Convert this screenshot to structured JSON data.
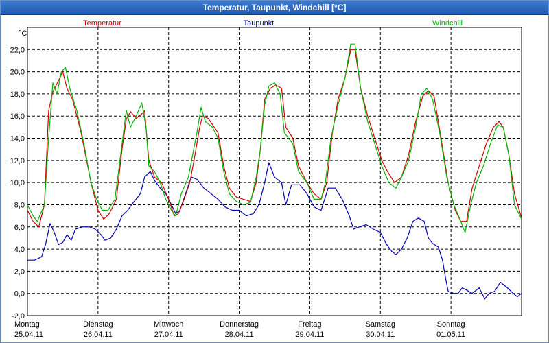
{
  "window": {
    "title": "Temperatur, Taupunkt, Windchill [°C]"
  },
  "chart_data": {
    "type": "line",
    "ylabel": "°C",
    "ylim": [
      -2,
      24
    ],
    "yticks": [
      "22,0",
      "20,0",
      "18,0",
      "16,0",
      "14,0",
      "12,0",
      "10,0",
      "8,0",
      "6,0",
      "4,0",
      "2,0",
      "0,0",
      "-2,0"
    ],
    "ytick_values": [
      22,
      20,
      18,
      16,
      14,
      12,
      10,
      8,
      6,
      4,
      2,
      0,
      -2
    ],
    "xlim": [
      0,
      7
    ],
    "x_days": [
      {
        "day": "Montag",
        "date": "25.04.11"
      },
      {
        "day": "Dienstag",
        "date": "26.04.11"
      },
      {
        "day": "Mittwoch",
        "date": "27.04.11"
      },
      {
        "day": "Donnerstag",
        "date": "28.04.11"
      },
      {
        "day": "Freitag",
        "date": "29.04.11"
      },
      {
        "day": "Samstag",
        "date": "30.04.11"
      },
      {
        "day": "Sonntag",
        "date": "01.05.11"
      }
    ],
    "grid": true,
    "series": [
      {
        "name": "Temperatur",
        "color": "#d40000",
        "points": [
          [
            0,
            7.5
          ],
          [
            0.08,
            6.5
          ],
          [
            0.16,
            6.0
          ],
          [
            0.24,
            8.0
          ],
          [
            0.3,
            16.5
          ],
          [
            0.36,
            18.2
          ],
          [
            0.44,
            19.2
          ],
          [
            0.5,
            20.0
          ],
          [
            0.56,
            18.5
          ],
          [
            0.64,
            17.5
          ],
          [
            0.76,
            14.5
          ],
          [
            0.9,
            10.0
          ],
          [
            1.0,
            7.5
          ],
          [
            1.08,
            6.7
          ],
          [
            1.16,
            7.2
          ],
          [
            1.26,
            8.5
          ],
          [
            1.34,
            13.0
          ],
          [
            1.4,
            15.7
          ],
          [
            1.46,
            16.4
          ],
          [
            1.54,
            15.8
          ],
          [
            1.62,
            16.2
          ],
          [
            1.66,
            16.5
          ],
          [
            1.72,
            12.0
          ],
          [
            1.8,
            10.5
          ],
          [
            1.9,
            10.0
          ],
          [
            2.0,
            8.5
          ],
          [
            2.08,
            7.0
          ],
          [
            2.14,
            7.2
          ],
          [
            2.22,
            8.5
          ],
          [
            2.3,
            10.0
          ],
          [
            2.36,
            12.0
          ],
          [
            2.44,
            15.0
          ],
          [
            2.48,
            16.0
          ],
          [
            2.56,
            15.8
          ],
          [
            2.7,
            14.5
          ],
          [
            2.78,
            11.5
          ],
          [
            2.86,
            9.5
          ],
          [
            2.96,
            8.7
          ],
          [
            3.06,
            8.5
          ],
          [
            3.16,
            8.3
          ],
          [
            3.24,
            10.0
          ],
          [
            3.3,
            13.0
          ],
          [
            3.36,
            17.5
          ],
          [
            3.44,
            18.5
          ],
          [
            3.52,
            18.8
          ],
          [
            3.6,
            18.5
          ],
          [
            3.66,
            15.0
          ],
          [
            3.76,
            14.0
          ],
          [
            3.84,
            11.5
          ],
          [
            3.96,
            10.0
          ],
          [
            4.06,
            9.0
          ],
          [
            4.16,
            8.5
          ],
          [
            4.24,
            10.0
          ],
          [
            4.32,
            14.5
          ],
          [
            4.4,
            17.5
          ],
          [
            4.5,
            19.5
          ],
          [
            4.58,
            22.0
          ],
          [
            4.64,
            22.0
          ],
          [
            4.72,
            18.5
          ],
          [
            4.82,
            16.0
          ],
          [
            4.92,
            14.0
          ],
          [
            5.02,
            12.0
          ],
          [
            5.1,
            11.0
          ],
          [
            5.2,
            10.0
          ],
          [
            5.3,
            10.5
          ],
          [
            5.4,
            12.5
          ],
          [
            5.5,
            15.5
          ],
          [
            5.6,
            17.8
          ],
          [
            5.68,
            18.3
          ],
          [
            5.76,
            17.8
          ],
          [
            5.86,
            14.0
          ],
          [
            5.96,
            10.0
          ],
          [
            6.06,
            7.5
          ],
          [
            6.14,
            6.5
          ],
          [
            6.22,
            6.5
          ],
          [
            6.3,
            9.5
          ],
          [
            6.4,
            11.5
          ],
          [
            6.5,
            13.5
          ],
          [
            6.6,
            15.0
          ],
          [
            6.68,
            15.5
          ],
          [
            6.74,
            15.0
          ],
          [
            6.82,
            12.5
          ],
          [
            6.9,
            9.0
          ],
          [
            7.0,
            6.8
          ]
        ]
      },
      {
        "name": "Taupunkt",
        "color": "#0000b4",
        "points": [
          [
            0,
            3.0
          ],
          [
            0.1,
            3.0
          ],
          [
            0.2,
            3.3
          ],
          [
            0.26,
            4.5
          ],
          [
            0.32,
            6.3
          ],
          [
            0.38,
            5.5
          ],
          [
            0.44,
            4.4
          ],
          [
            0.5,
            4.6
          ],
          [
            0.56,
            5.3
          ],
          [
            0.62,
            4.8
          ],
          [
            0.68,
            5.8
          ],
          [
            0.78,
            6.0
          ],
          [
            0.88,
            6.0
          ],
          [
            0.96,
            5.8
          ],
          [
            1.04,
            5.3
          ],
          [
            1.1,
            4.8
          ],
          [
            1.18,
            5.0
          ],
          [
            1.26,
            5.8
          ],
          [
            1.34,
            7.0
          ],
          [
            1.42,
            7.5
          ],
          [
            1.5,
            8.2
          ],
          [
            1.6,
            9.0
          ],
          [
            1.66,
            10.5
          ],
          [
            1.74,
            11.0
          ],
          [
            1.8,
            10.2
          ],
          [
            1.88,
            9.5
          ],
          [
            1.96,
            9.0
          ],
          [
            2.04,
            8.0
          ],
          [
            2.1,
            7.2
          ],
          [
            2.16,
            7.5
          ],
          [
            2.24,
            9.0
          ],
          [
            2.32,
            10.5
          ],
          [
            2.4,
            10.3
          ],
          [
            2.5,
            9.5
          ],
          [
            2.6,
            9.0
          ],
          [
            2.7,
            8.5
          ],
          [
            2.8,
            7.8
          ],
          [
            2.9,
            7.5
          ],
          [
            3.0,
            7.5
          ],
          [
            3.1,
            7.0
          ],
          [
            3.2,
            7.2
          ],
          [
            3.28,
            8.0
          ],
          [
            3.36,
            10.0
          ],
          [
            3.42,
            11.8
          ],
          [
            3.5,
            10.5
          ],
          [
            3.6,
            10.0
          ],
          [
            3.66,
            8.0
          ],
          [
            3.74,
            9.8
          ],
          [
            3.86,
            9.8
          ],
          [
            3.96,
            9.0
          ],
          [
            4.06,
            7.8
          ],
          [
            4.16,
            7.5
          ],
          [
            4.26,
            9.5
          ],
          [
            4.36,
            9.5
          ],
          [
            4.46,
            8.5
          ],
          [
            4.56,
            7.0
          ],
          [
            4.62,
            5.8
          ],
          [
            4.7,
            6.0
          ],
          [
            4.8,
            6.2
          ],
          [
            4.9,
            5.8
          ],
          [
            5.0,
            5.5
          ],
          [
            5.08,
            4.5
          ],
          [
            5.16,
            3.8
          ],
          [
            5.22,
            3.5
          ],
          [
            5.3,
            4.0
          ],
          [
            5.38,
            5.0
          ],
          [
            5.46,
            6.5
          ],
          [
            5.54,
            6.8
          ],
          [
            5.62,
            6.5
          ],
          [
            5.68,
            5.0
          ],
          [
            5.74,
            4.5
          ],
          [
            5.82,
            4.2
          ],
          [
            5.88,
            3.0
          ],
          [
            5.92,
            1.5
          ],
          [
            5.96,
            0.2
          ],
          [
            6.04,
            0.0
          ],
          [
            6.1,
            0.0
          ],
          [
            6.16,
            0.5
          ],
          [
            6.22,
            0.3
          ],
          [
            6.3,
            0.0
          ],
          [
            6.4,
            0.5
          ],
          [
            6.48,
            -0.5
          ],
          [
            6.54,
            0.0
          ],
          [
            6.62,
            0.2
          ],
          [
            6.7,
            1.0
          ],
          [
            6.8,
            0.5
          ],
          [
            6.88,
            0.0
          ],
          [
            6.94,
            -0.3
          ],
          [
            7.0,
            0.0
          ]
        ]
      },
      {
        "name": "Windchill",
        "color": "#00b400",
        "points": [
          [
            0,
            8.0
          ],
          [
            0.08,
            7.0
          ],
          [
            0.14,
            6.5
          ],
          [
            0.24,
            8.0
          ],
          [
            0.3,
            14.0
          ],
          [
            0.36,
            19.0
          ],
          [
            0.42,
            18.0
          ],
          [
            0.48,
            20.0
          ],
          [
            0.54,
            20.4
          ],
          [
            0.6,
            18.5
          ],
          [
            0.7,
            16.5
          ],
          [
            0.8,
            13.5
          ],
          [
            0.9,
            10.0
          ],
          [
            0.98,
            8.5
          ],
          [
            1.06,
            7.5
          ],
          [
            1.14,
            7.5
          ],
          [
            1.24,
            8.5
          ],
          [
            1.32,
            12.5
          ],
          [
            1.4,
            16.5
          ],
          [
            1.46,
            15.0
          ],
          [
            1.54,
            16.0
          ],
          [
            1.62,
            17.2
          ],
          [
            1.68,
            15.0
          ],
          [
            1.72,
            11.5
          ],
          [
            1.8,
            11.0
          ],
          [
            1.88,
            10.0
          ],
          [
            1.96,
            8.5
          ],
          [
            2.04,
            7.5
          ],
          [
            2.1,
            7.0
          ],
          [
            2.18,
            9.0
          ],
          [
            2.28,
            10.5
          ],
          [
            2.34,
            12.5
          ],
          [
            2.4,
            14.5
          ],
          [
            2.46,
            16.8
          ],
          [
            2.52,
            15.5
          ],
          [
            2.62,
            15.0
          ],
          [
            2.7,
            14.0
          ],
          [
            2.78,
            11.0
          ],
          [
            2.86,
            9.0
          ],
          [
            2.96,
            8.3
          ],
          [
            3.06,
            8.0
          ],
          [
            3.16,
            8.2
          ],
          [
            3.24,
            10.5
          ],
          [
            3.3,
            13.0
          ],
          [
            3.36,
            17.0
          ],
          [
            3.42,
            18.7
          ],
          [
            3.5,
            19.0
          ],
          [
            3.58,
            18.0
          ],
          [
            3.64,
            14.5
          ],
          [
            3.76,
            13.5
          ],
          [
            3.84,
            11.0
          ],
          [
            3.96,
            10.0
          ],
          [
            4.06,
            8.5
          ],
          [
            4.16,
            8.5
          ],
          [
            4.22,
            10.0
          ],
          [
            4.3,
            14.0
          ],
          [
            4.4,
            17.0
          ],
          [
            4.5,
            19.5
          ],
          [
            4.58,
            22.5
          ],
          [
            4.64,
            22.5
          ],
          [
            4.72,
            18.5
          ],
          [
            4.82,
            15.5
          ],
          [
            4.92,
            13.5
          ],
          [
            5.02,
            11.5
          ],
          [
            5.12,
            10.0
          ],
          [
            5.22,
            9.5
          ],
          [
            5.3,
            10.5
          ],
          [
            5.4,
            12.0
          ],
          [
            5.5,
            15.0
          ],
          [
            5.58,
            18.0
          ],
          [
            5.66,
            18.5
          ],
          [
            5.74,
            17.5
          ],
          [
            5.84,
            14.5
          ],
          [
            5.94,
            10.5
          ],
          [
            6.04,
            8.0
          ],
          [
            6.12,
            6.8
          ],
          [
            6.2,
            5.5
          ],
          [
            6.28,
            8.0
          ],
          [
            6.36,
            10.0
          ],
          [
            6.46,
            11.5
          ],
          [
            6.56,
            13.5
          ],
          [
            6.66,
            15.2
          ],
          [
            6.74,
            15.0
          ],
          [
            6.82,
            12.5
          ],
          [
            6.9,
            8.0
          ],
          [
            7.0,
            6.7
          ]
        ]
      }
    ]
  }
}
